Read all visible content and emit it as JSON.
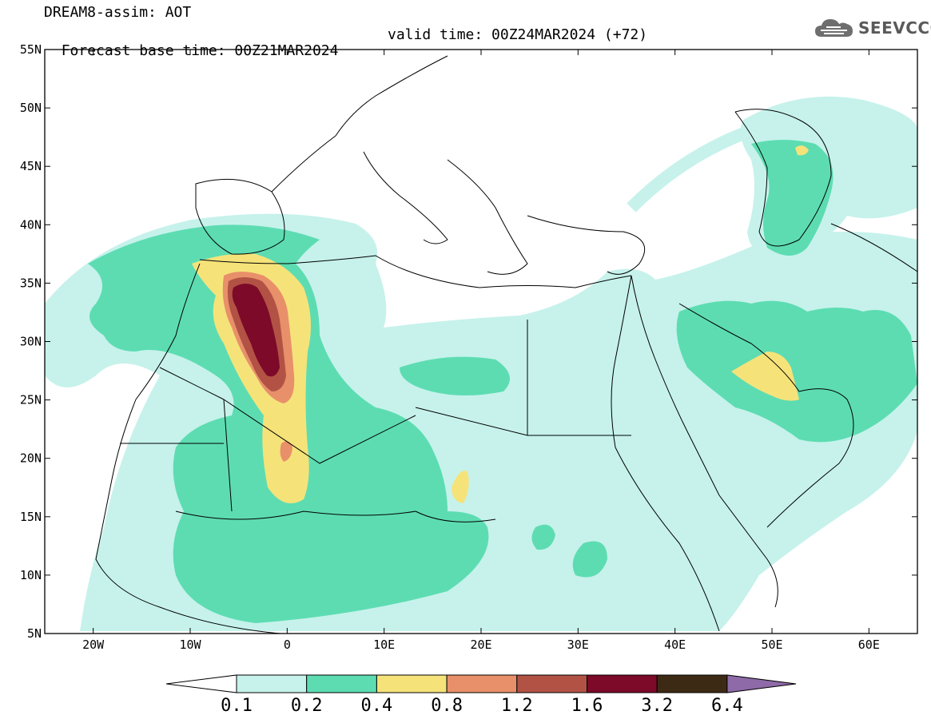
{
  "header": {
    "title": "DREAM8-assim: AOT",
    "base_time": "Forecast base time: 00Z21MAR2024",
    "valid_time": "valid time: 00Z24MAR2024 (+72)",
    "logo_text": "SEEVCCC"
  },
  "map": {
    "lat_labels": [
      "55N",
      "50N",
      "45N",
      "40N",
      "35N",
      "30N",
      "25N",
      "20N",
      "15N",
      "10N",
      "5N"
    ],
    "lon_labels": [
      "20W",
      "10W",
      "0",
      "10E",
      "20E",
      "30E",
      "40E",
      "50E",
      "60E"
    ],
    "lat_range": [
      5,
      55
    ],
    "lon_range": [
      -25,
      65
    ]
  },
  "colorbar": {
    "labels": [
      "0.1",
      "0.2",
      "0.4",
      "0.8",
      "1.2",
      "1.6",
      "3.2",
      "6.4"
    ],
    "colors": [
      "#ffffff",
      "#c6f2eb",
      "#5ddcb2",
      "#f5e37a",
      "#e8906a",
      "#b25245",
      "#7c0a28",
      "#3d2a14",
      "#8e6aa8"
    ]
  },
  "colors": {
    "c1": "#c6f2eb",
    "c2": "#5ddcb2",
    "c3": "#f5e37a",
    "c4": "#e8906a",
    "c5": "#b25245",
    "c6": "#7c0a28"
  }
}
